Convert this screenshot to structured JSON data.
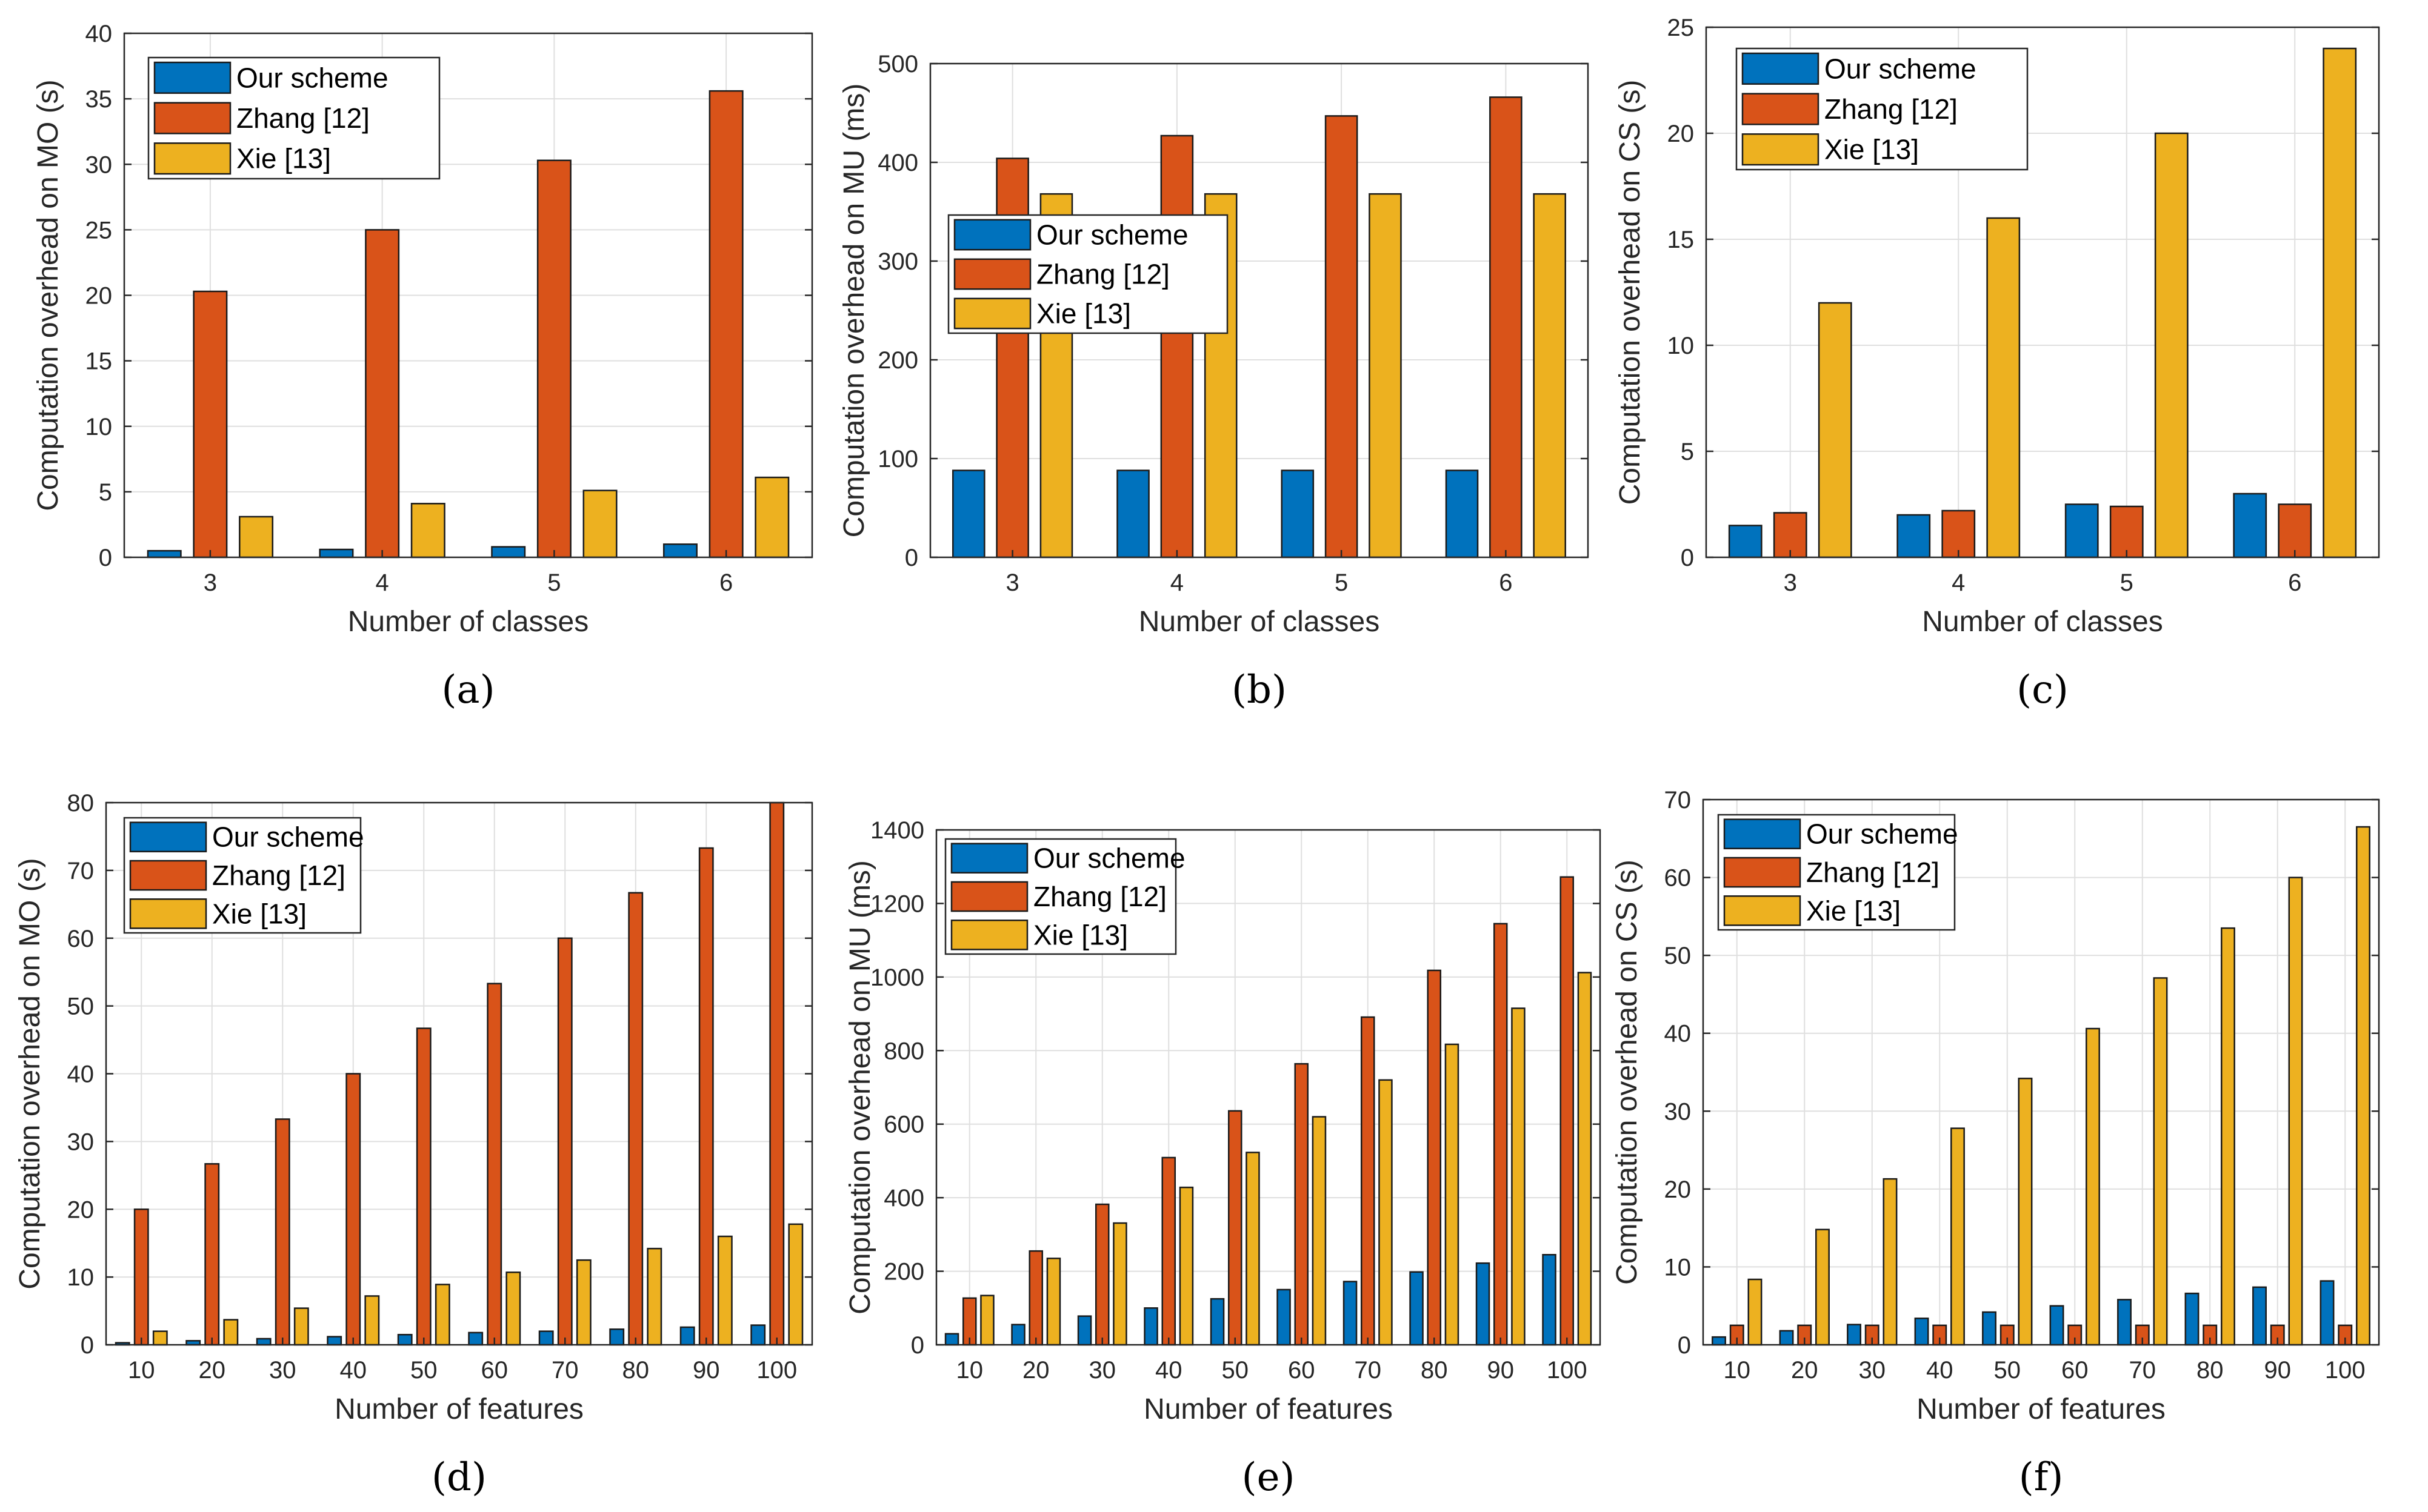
{
  "figure": {
    "colors": {
      "our_scheme": "#0072BD",
      "zhang": "#D95319",
      "xie": "#EDB120"
    },
    "panels": [
      {
        "label": "(a)",
        "chart_data": {
          "type": "bar",
          "categories": [
            "3",
            "4",
            "5",
            "6"
          ],
          "series": [
            {
              "name": "Our scheme",
              "values": [
                0.5,
                0.6,
                0.8,
                1.0
              ]
            },
            {
              "name": "Zhang [12]",
              "values": [
                20.3,
                25.0,
                30.3,
                35.6
              ]
            },
            {
              "name": "Xie [13]",
              "values": [
                3.1,
                4.1,
                5.1,
                6.1
              ]
            }
          ],
          "xlabel": "Number of classes",
          "ylabel": "Computation overhead on MO (s)",
          "ylim": [
            0,
            40
          ],
          "yticks": [
            "0",
            "5",
            "10",
            "15",
            "20",
            "25",
            "30",
            "35",
            "40"
          ],
          "legend": "top-left",
          "grid": true
        }
      },
      {
        "label": "(b)",
        "chart_data": {
          "type": "bar",
          "categories": [
            "3",
            "4",
            "5",
            "6"
          ],
          "series": [
            {
              "name": "Our scheme",
              "values": [
                88,
                88,
                88,
                88
              ]
            },
            {
              "name": "Zhang [12]",
              "values": [
                404,
                427,
                447,
                466
              ]
            },
            {
              "name": "Xie [13]",
              "values": [
                368,
                368,
                368,
                368
              ]
            }
          ],
          "xlabel": "Number of classes",
          "ylabel": "Computation overhead on MU (ms)",
          "ylim": [
            0,
            500
          ],
          "yticks": [
            "0",
            "100",
            "200",
            "300",
            "400",
            "500"
          ],
          "legend": "middle-left",
          "grid": true
        }
      },
      {
        "label": "(c)",
        "chart_data": {
          "type": "bar",
          "categories": [
            "3",
            "4",
            "5",
            "6"
          ],
          "series": [
            {
              "name": "Our scheme",
              "values": [
                1.5,
                2.0,
                2.5,
                3.0
              ]
            },
            {
              "name": "Zhang [12]",
              "values": [
                2.1,
                2.2,
                2.4,
                2.5
              ]
            },
            {
              "name": "Xie [13]",
              "values": [
                12.0,
                16.0,
                20.0,
                24.0
              ]
            }
          ],
          "xlabel": "Number of classes",
          "ylabel": "Computation overhead on CS (s)",
          "ylim": [
            0,
            25
          ],
          "yticks": [
            "0",
            "5",
            "10",
            "15",
            "20",
            "25"
          ],
          "legend": "top-left",
          "grid": true
        }
      },
      {
        "label": "(d)",
        "chart_data": {
          "type": "bar",
          "categories": [
            "10",
            "20",
            "30",
            "40",
            "50",
            "60",
            "70",
            "80",
            "90",
            "100"
          ],
          "series": [
            {
              "name": "Our scheme",
              "values": [
                0.3,
                0.6,
                0.9,
                1.2,
                1.5,
                1.8,
                2.0,
                2.3,
                2.6,
                2.9
              ]
            },
            {
              "name": "Zhang [12]",
              "values": [
                20.0,
                26.7,
                33.3,
                40.0,
                46.7,
                53.3,
                60.0,
                66.7,
                73.3,
                80.0
              ]
            },
            {
              "name": "Xie [13]",
              "values": [
                2.0,
                3.7,
                5.4,
                7.2,
                8.9,
                10.7,
                12.5,
                14.2,
                16.0,
                17.8
              ]
            }
          ],
          "xlabel": "Number of features",
          "ylabel": "Computation overhead on MO (s)",
          "ylim": [
            0,
            80
          ],
          "yticks": [
            "0",
            "10",
            "20",
            "30",
            "40",
            "50",
            "60",
            "70",
            "80"
          ],
          "legend": "top-left",
          "grid": true
        }
      },
      {
        "label": "(e)",
        "chart_data": {
          "type": "bar",
          "categories": [
            "10",
            "20",
            "30",
            "40",
            "50",
            "60",
            "70",
            "80",
            "90",
            "100"
          ],
          "series": [
            {
              "name": "Our scheme",
              "values": [
                30,
                55,
                78,
                100,
                125,
                150,
                172,
                198,
                222,
                245
              ]
            },
            {
              "name": "Zhang [12]",
              "values": [
                127,
                255,
                382,
                509,
                636,
                764,
                891,
                1018,
                1145,
                1272
              ]
            },
            {
              "name": "Xie [13]",
              "values": [
                134,
                235,
                331,
                428,
                523,
                620,
                720,
                817,
                915,
                1012
              ]
            }
          ],
          "xlabel": "Number of features",
          "ylabel": "Computation overhead on MU (ms)",
          "ylim": [
            0,
            1400
          ],
          "yticks": [
            "0",
            "200",
            "400",
            "600",
            "800",
            "1000",
            "1200",
            "1400"
          ],
          "legend": "top-left",
          "grid": true
        }
      },
      {
        "label": "(f)",
        "chart_data": {
          "type": "bar",
          "categories": [
            "10",
            "20",
            "30",
            "40",
            "50",
            "60",
            "70",
            "80",
            "90",
            "100"
          ],
          "series": [
            {
              "name": "Our scheme",
              "values": [
                1.0,
                1.8,
                2.6,
                3.4,
                4.2,
                5.0,
                5.8,
                6.6,
                7.4,
                8.2
              ]
            },
            {
              "name": "Zhang [12]",
              "values": [
                2.5,
                2.5,
                2.5,
                2.5,
                2.5,
                2.5,
                2.5,
                2.5,
                2.5,
                2.5
              ]
            },
            {
              "name": "Xie [13]",
              "values": [
                8.4,
                14.8,
                21.3,
                27.8,
                34.2,
                40.6,
                47.1,
                53.5,
                60.0,
                66.5
              ]
            }
          ],
          "xlabel": "Number of features",
          "ylabel": "Computation overhead on CS (s)",
          "ylim": [
            0,
            70
          ],
          "yticks": [
            "0",
            "10",
            "20",
            "30",
            "40",
            "50",
            "60",
            "70"
          ],
          "legend": "top-left",
          "grid": true
        }
      }
    ]
  }
}
